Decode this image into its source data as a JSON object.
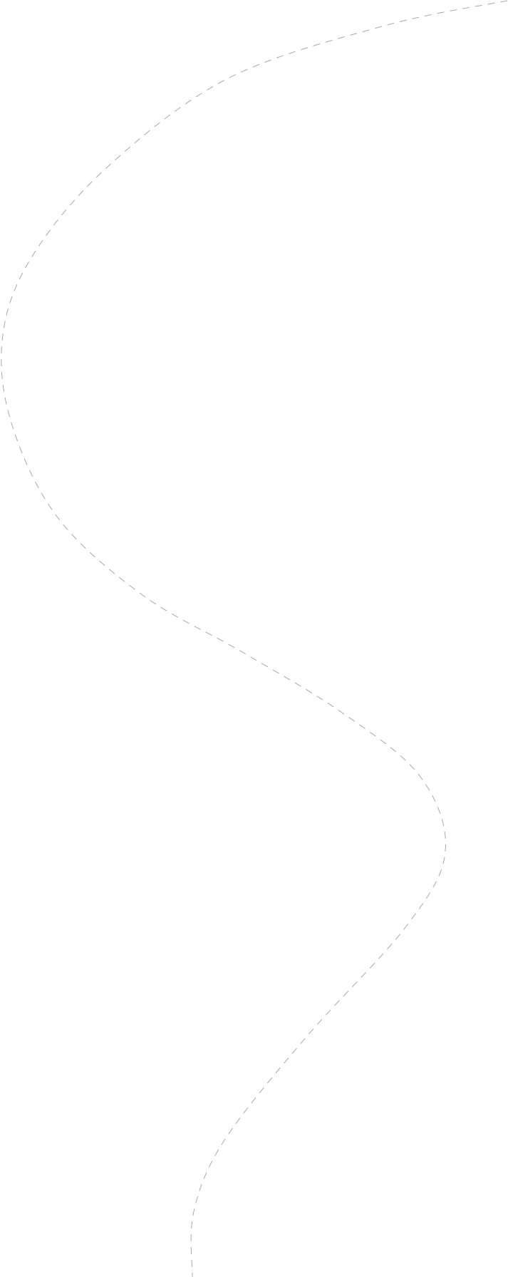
{
  "curve": {
    "stroke_color": "#a8a8a8",
    "background_color": "#ffffff"
  }
}
